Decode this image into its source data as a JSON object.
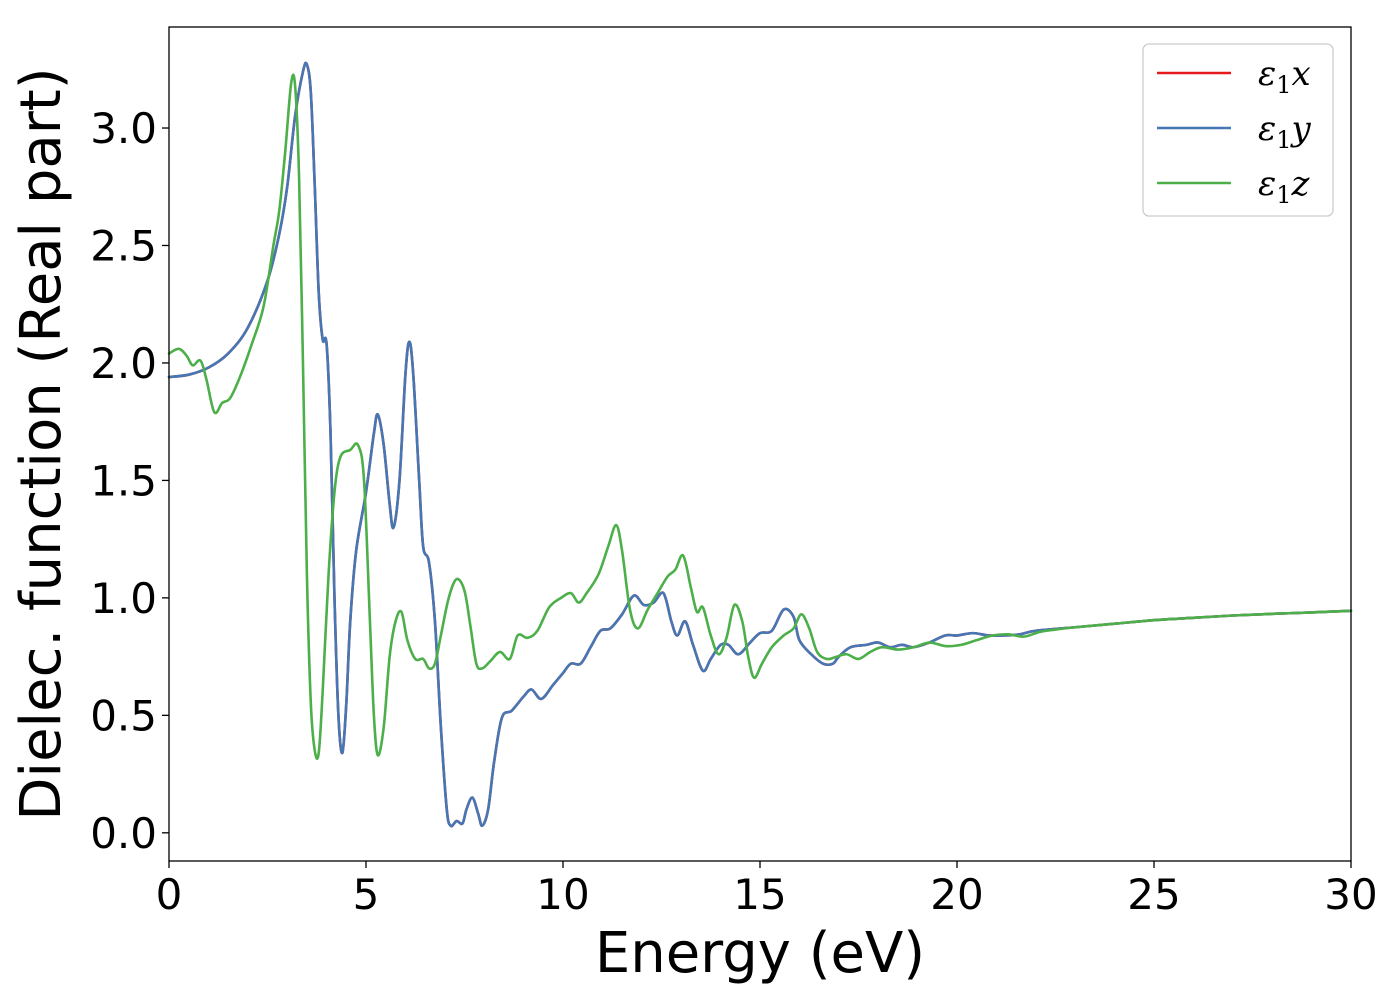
{
  "chart_data": {
    "type": "line",
    "xlabel": "Energy (eV)",
    "ylabel": "Dielec. function (Real part)",
    "xlim": [
      0,
      30
    ],
    "ylim": [
      -0.12,
      3.43
    ],
    "xticks": [
      0,
      5,
      10,
      15,
      20,
      25,
      30
    ],
    "yticks": [
      0.0,
      0.5,
      1.0,
      1.5,
      2.0,
      2.5,
      3.0
    ],
    "xtick_labels": [
      "0",
      "5",
      "10",
      "15",
      "20",
      "25",
      "30"
    ],
    "ytick_labels": [
      "0.0",
      "0.5",
      "1.0",
      "1.5",
      "2.0",
      "2.5",
      "3.0"
    ],
    "grid": false,
    "legend_position": "top-right",
    "series": [
      {
        "name": "ε1x",
        "symbol": "ε",
        "subscript": "1",
        "axis": "x",
        "color": "#e41a1c",
        "ref": "xy"
      },
      {
        "name": "ε1y",
        "symbol": "ε",
        "subscript": "1",
        "axis": "y",
        "color": "#4477b4",
        "ref": "xy"
      },
      {
        "name": "ε1z",
        "symbol": "ε",
        "subscript": "1",
        "axis": "z",
        "color": "#4daf4a",
        "ref": "z"
      }
    ],
    "curve_xy": [
      [
        0,
        1.94
      ],
      [
        0.5,
        1.95
      ],
      [
        1.0,
        1.98
      ],
      [
        1.5,
        2.04
      ],
      [
        2.0,
        2.15
      ],
      [
        2.5,
        2.35
      ],
      [
        2.8,
        2.55
      ],
      [
        3.0,
        2.75
      ],
      [
        3.2,
        3.05
      ],
      [
        3.4,
        3.24
      ],
      [
        3.5,
        3.27
      ],
      [
        3.6,
        3.15
      ],
      [
        3.7,
        2.75
      ],
      [
        3.8,
        2.3
      ],
      [
        3.9,
        2.1
      ],
      [
        4.0,
        2.08
      ],
      [
        4.1,
        1.7
      ],
      [
        4.2,
        1.0
      ],
      [
        4.3,
        0.5
      ],
      [
        4.4,
        0.34
      ],
      [
        4.5,
        0.55
      ],
      [
        4.6,
        0.9
      ],
      [
        4.75,
        1.2
      ],
      [
        5.0,
        1.45
      ],
      [
        5.2,
        1.7
      ],
      [
        5.3,
        1.78
      ],
      [
        5.45,
        1.65
      ],
      [
        5.6,
        1.4
      ],
      [
        5.7,
        1.3
      ],
      [
        5.85,
        1.5
      ],
      [
        6.0,
        1.95
      ],
      [
        6.1,
        2.09
      ],
      [
        6.2,
        1.95
      ],
      [
        6.35,
        1.5
      ],
      [
        6.45,
        1.22
      ],
      [
        6.6,
        1.15
      ],
      [
        6.75,
        0.9
      ],
      [
        6.9,
        0.45
      ],
      [
        7.05,
        0.1
      ],
      [
        7.15,
        0.03
      ],
      [
        7.3,
        0.05
      ],
      [
        7.45,
        0.04
      ],
      [
        7.55,
        0.1
      ],
      [
        7.7,
        0.15
      ],
      [
        7.85,
        0.08
      ],
      [
        7.95,
        0.03
      ],
      [
        8.1,
        0.1
      ],
      [
        8.25,
        0.3
      ],
      [
        8.45,
        0.49
      ],
      [
        8.7,
        0.52
      ],
      [
        9.0,
        0.58
      ],
      [
        9.2,
        0.61
      ],
      [
        9.45,
        0.57
      ],
      [
        9.75,
        0.63
      ],
      [
        10.0,
        0.68
      ],
      [
        10.2,
        0.72
      ],
      [
        10.45,
        0.72
      ],
      [
        10.7,
        0.79
      ],
      [
        10.95,
        0.86
      ],
      [
        11.2,
        0.87
      ],
      [
        11.5,
        0.93
      ],
      [
        11.8,
        1.01
      ],
      [
        12.05,
        0.97
      ],
      [
        12.3,
        0.98
      ],
      [
        12.55,
        1.02
      ],
      [
        12.75,
        0.9
      ],
      [
        12.9,
        0.84
      ],
      [
        13.1,
        0.9
      ],
      [
        13.3,
        0.8
      ],
      [
        13.55,
        0.69
      ],
      [
        13.75,
        0.74
      ],
      [
        14.0,
        0.8
      ],
      [
        14.2,
        0.8
      ],
      [
        14.45,
        0.76
      ],
      [
        14.75,
        0.81
      ],
      [
        15.0,
        0.85
      ],
      [
        15.3,
        0.86
      ],
      [
        15.6,
        0.95
      ],
      [
        15.85,
        0.92
      ],
      [
        16.0,
        0.82
      ],
      [
        16.3,
        0.76
      ],
      [
        16.6,
        0.72
      ],
      [
        16.85,
        0.72
      ],
      [
        17.0,
        0.75
      ],
      [
        17.3,
        0.79
      ],
      [
        17.7,
        0.8
      ],
      [
        18.0,
        0.81
      ],
      [
        18.3,
        0.79
      ],
      [
        18.6,
        0.8
      ],
      [
        18.9,
        0.79
      ],
      [
        19.3,
        0.81
      ],
      [
        19.7,
        0.84
      ],
      [
        20.0,
        0.84
      ],
      [
        20.4,
        0.85
      ],
      [
        20.8,
        0.84
      ],
      [
        21.2,
        0.84
      ],
      [
        21.6,
        0.845
      ],
      [
        22.0,
        0.86
      ],
      [
        23.0,
        0.875
      ],
      [
        24.0,
        0.89
      ],
      [
        25.0,
        0.905
      ],
      [
        26.0,
        0.915
      ],
      [
        27.0,
        0.925
      ],
      [
        28.0,
        0.932
      ],
      [
        29.0,
        0.938
      ],
      [
        30.0,
        0.945
      ]
    ],
    "curve_z": [
      [
        0,
        2.04
      ],
      [
        0.25,
        2.06
      ],
      [
        0.45,
        2.03
      ],
      [
        0.6,
        1.99
      ],
      [
        0.8,
        2.01
      ],
      [
        0.95,
        1.93
      ],
      [
        1.15,
        1.79
      ],
      [
        1.35,
        1.83
      ],
      [
        1.55,
        1.85
      ],
      [
        1.8,
        1.94
      ],
      [
        2.1,
        2.08
      ],
      [
        2.4,
        2.24
      ],
      [
        2.65,
        2.5
      ],
      [
        2.8,
        2.65
      ],
      [
        2.95,
        2.9
      ],
      [
        3.1,
        3.19
      ],
      [
        3.2,
        3.18
      ],
      [
        3.3,
        2.8
      ],
      [
        3.4,
        2.0
      ],
      [
        3.5,
        1.1
      ],
      [
        3.6,
        0.55
      ],
      [
        3.7,
        0.35
      ],
      [
        3.8,
        0.34
      ],
      [
        3.9,
        0.6
      ],
      [
        4.05,
        1.1
      ],
      [
        4.2,
        1.45
      ],
      [
        4.35,
        1.6
      ],
      [
        4.6,
        1.63
      ],
      [
        4.8,
        1.65
      ],
      [
        4.95,
        1.5
      ],
      [
        5.1,
        0.9
      ],
      [
        5.2,
        0.5
      ],
      [
        5.3,
        0.33
      ],
      [
        5.45,
        0.45
      ],
      [
        5.6,
        0.75
      ],
      [
        5.75,
        0.9
      ],
      [
        5.9,
        0.94
      ],
      [
        6.05,
        0.82
      ],
      [
        6.25,
        0.74
      ],
      [
        6.45,
        0.74
      ],
      [
        6.6,
        0.7
      ],
      [
        6.75,
        0.72
      ],
      [
        6.9,
        0.84
      ],
      [
        7.1,
        1.0
      ],
      [
        7.3,
        1.08
      ],
      [
        7.5,
        1.03
      ],
      [
        7.65,
        0.88
      ],
      [
        7.8,
        0.72
      ],
      [
        7.95,
        0.7
      ],
      [
        8.15,
        0.73
      ],
      [
        8.4,
        0.77
      ],
      [
        8.65,
        0.74
      ],
      [
        8.85,
        0.84
      ],
      [
        9.1,
        0.83
      ],
      [
        9.35,
        0.86
      ],
      [
        9.65,
        0.96
      ],
      [
        9.95,
        1.0
      ],
      [
        10.2,
        1.02
      ],
      [
        10.4,
        0.98
      ],
      [
        10.6,
        1.02
      ],
      [
        10.9,
        1.1
      ],
      [
        11.15,
        1.22
      ],
      [
        11.35,
        1.31
      ],
      [
        11.5,
        1.2
      ],
      [
        11.7,
        0.95
      ],
      [
        11.9,
        0.87
      ],
      [
        12.15,
        0.95
      ],
      [
        12.4,
        1.02
      ],
      [
        12.65,
        1.09
      ],
      [
        12.85,
        1.12
      ],
      [
        13.05,
        1.18
      ],
      [
        13.25,
        1.04
      ],
      [
        13.4,
        0.94
      ],
      [
        13.55,
        0.96
      ],
      [
        13.75,
        0.84
      ],
      [
        13.95,
        0.76
      ],
      [
        14.15,
        0.83
      ],
      [
        14.35,
        0.97
      ],
      [
        14.55,
        0.9
      ],
      [
        14.7,
        0.75
      ],
      [
        14.85,
        0.66
      ],
      [
        15.05,
        0.72
      ],
      [
        15.3,
        0.79
      ],
      [
        15.6,
        0.84
      ],
      [
        15.85,
        0.87
      ],
      [
        16.05,
        0.93
      ],
      [
        16.25,
        0.87
      ],
      [
        16.45,
        0.77
      ],
      [
        16.7,
        0.74
      ],
      [
        16.95,
        0.75
      ],
      [
        17.2,
        0.76
      ],
      [
        17.5,
        0.74
      ],
      [
        17.8,
        0.77
      ],
      [
        18.1,
        0.79
      ],
      [
        18.5,
        0.78
      ],
      [
        18.9,
        0.79
      ],
      [
        19.3,
        0.81
      ],
      [
        19.7,
        0.795
      ],
      [
        20.1,
        0.8
      ],
      [
        20.5,
        0.82
      ],
      [
        20.9,
        0.84
      ],
      [
        21.3,
        0.845
      ],
      [
        21.7,
        0.835
      ],
      [
        22.1,
        0.855
      ],
      [
        22.5,
        0.865
      ],
      [
        23.0,
        0.875
      ],
      [
        24.0,
        0.89
      ],
      [
        25.0,
        0.905
      ],
      [
        26.0,
        0.915
      ],
      [
        27.0,
        0.925
      ],
      [
        28.0,
        0.932
      ],
      [
        29.0,
        0.938
      ],
      [
        30.0,
        0.945
      ]
    ]
  }
}
